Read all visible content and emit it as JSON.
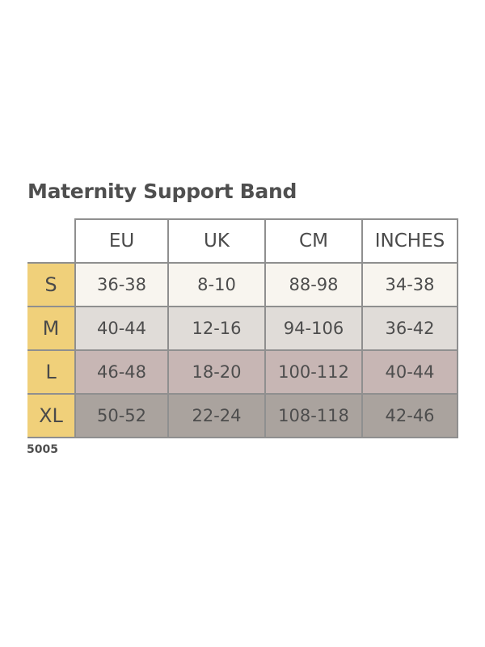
{
  "title": "Maternity Support Band",
  "columns": [
    "EU",
    "UK",
    "CM",
    "INCHES"
  ],
  "rows": [
    {
      "size": "S",
      "values": [
        "36-38",
        "8-10",
        "88-98",
        "34-38"
      ]
    },
    {
      "size": "M",
      "values": [
        "40-44",
        "12-16",
        "94-106",
        "36-42"
      ]
    },
    {
      "size": "L",
      "values": [
        "46-48",
        "18-20",
        "100-112",
        "40-44"
      ]
    },
    {
      "size": "XL",
      "values": [
        "50-52",
        "22-24",
        "108-118",
        "42-46"
      ]
    }
  ],
  "code": "5005",
  "colors": {
    "size_label_bg": "#f0d07a",
    "row_s_bg": "#f8f5ef",
    "row_m_bg": "#e0dcd8",
    "row_l_bg": "#c7b6b4",
    "row_xl_bg": "#aaa39e",
    "grid_line": "#8f8f8f",
    "text": "#4d4d4d"
  }
}
